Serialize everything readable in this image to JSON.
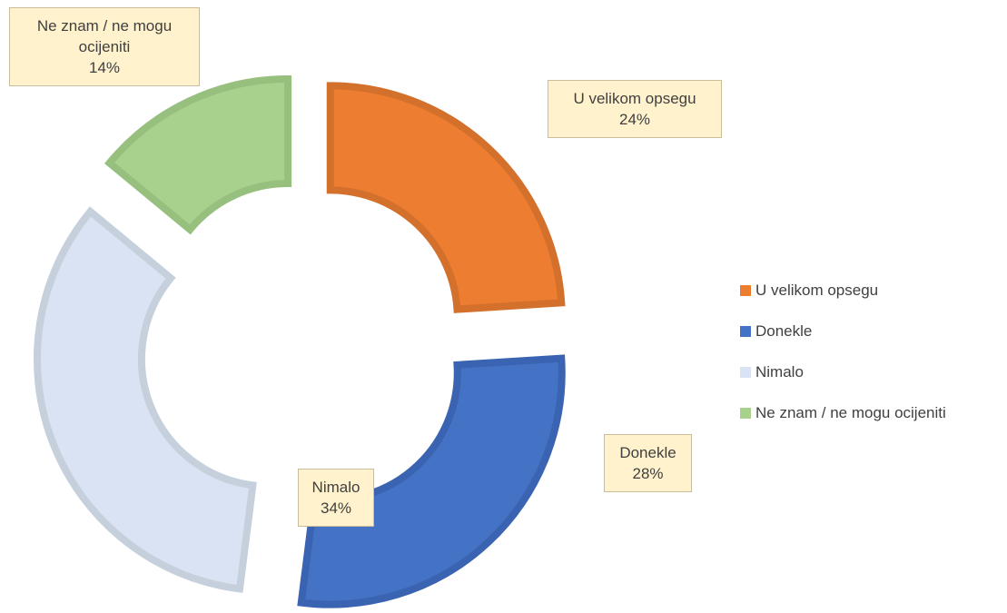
{
  "chart_data": {
    "type": "doughnut",
    "categories": [
      "U velikom opsegu",
      "Donekle",
      "Nimalo",
      "Ne znam / ne mogu ocijeniti"
    ],
    "values": [
      24,
      28,
      34,
      14
    ],
    "value_labels": [
      "24%",
      "28%",
      "34%",
      "14%"
    ],
    "colors": [
      "#ed7d31",
      "#4472c4",
      "#dae3f3",
      "#a9d18e"
    ],
    "border_colors": [
      "#d2702c",
      "#3a63b2",
      "#c6d0dc",
      "#97bf7e"
    ],
    "legend": "right"
  }
}
